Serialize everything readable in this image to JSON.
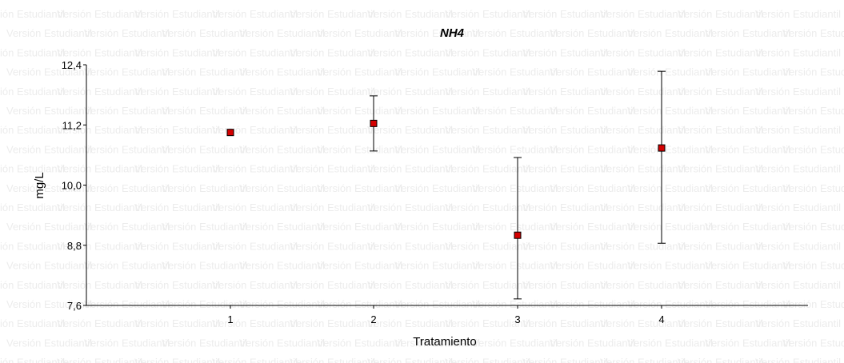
{
  "watermark": "Versión Estudiantil",
  "chart_data": {
    "type": "scatter",
    "title": "NH4",
    "xlabel": "Tratamiento",
    "ylabel": "mg/L",
    "categories": [
      "1",
      "2",
      "3",
      "4"
    ],
    "series": [
      {
        "values": [
          11.05,
          11.23,
          9.0,
          10.74
        ],
        "error_low": [
          11.05,
          10.68,
          7.73,
          8.84
        ],
        "error_high": [
          11.05,
          11.78,
          10.55,
          12.27
        ]
      }
    ],
    "ylim": [
      7.6,
      12.4
    ],
    "yticks": [
      "7,6",
      "8,8",
      "10,0",
      "11,2",
      "12,4"
    ],
    "ytick_values": [
      7.6,
      8.8,
      10.0,
      11.2,
      12.4
    ],
    "grid": false,
    "legend": "none",
    "marker_color": "#d40000"
  }
}
